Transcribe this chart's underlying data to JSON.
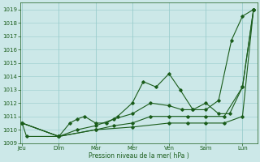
{
  "xlabel": "Pression niveau de la mer( hPa )",
  "background_color": "#cce8e8",
  "grid_color": "#99cccc",
  "line_color": "#1a5c1a",
  "ylim": [
    1009,
    1019.5
  ],
  "yticks": [
    1009,
    1010,
    1011,
    1012,
    1013,
    1014,
    1015,
    1016,
    1017,
    1018,
    1019
  ],
  "day_labels": [
    "Jeu",
    "Dim",
    "Mar",
    "Mer",
    "Ven",
    "Sam",
    "Lun"
  ],
  "day_positions": [
    0,
    1,
    2,
    3,
    4,
    5,
    6
  ],
  "xlim": [
    -0.05,
    6.4
  ],
  "line1_x": [
    0,
    0.12,
    1.0,
    1.3,
    1.5,
    1.7,
    2.0,
    2.3,
    2.6,
    3.0,
    3.3,
    3.65,
    4.0,
    4.3,
    4.65,
    5.0,
    5.35,
    5.7,
    6.0,
    6.3
  ],
  "line1_y": [
    1010.5,
    1009.5,
    1009.5,
    1010.5,
    1010.8,
    1011.0,
    1010.5,
    1010.5,
    1011.0,
    1012.0,
    1013.6,
    1013.2,
    1014.2,
    1013.0,
    1011.5,
    1011.5,
    1012.2,
    1016.7,
    1018.5,
    1019.0
  ],
  "line2_x": [
    0,
    1.0,
    1.5,
    2.0,
    2.5,
    3.0,
    3.5,
    4.0,
    4.35,
    4.65,
    5.0,
    5.35,
    5.65,
    6.0,
    6.3
  ],
  "line2_y": [
    1010.5,
    1009.5,
    1010.0,
    1010.3,
    1010.8,
    1011.2,
    1012.0,
    1011.8,
    1011.5,
    1011.5,
    1012.0,
    1011.2,
    1011.2,
    1013.2,
    1019.0
  ],
  "line3_x": [
    0,
    1.0,
    2.0,
    2.5,
    3.0,
    3.5,
    4.0,
    4.5,
    5.0,
    5.5,
    6.0,
    6.3
  ],
  "line3_y": [
    1010.5,
    1009.5,
    1010.0,
    1010.3,
    1010.5,
    1011.0,
    1011.0,
    1011.0,
    1011.0,
    1011.0,
    1013.2,
    1019.0
  ],
  "line4_x": [
    0,
    1.0,
    2.0,
    3.0,
    4.0,
    4.5,
    5.0,
    5.5,
    6.0,
    6.3
  ],
  "line4_y": [
    1010.5,
    1009.5,
    1010.0,
    1010.2,
    1010.5,
    1010.5,
    1010.5,
    1010.5,
    1011.0,
    1019.0
  ],
  "lw": 0.8,
  "ms": 1.8,
  "tick_fontsize": 5.0,
  "xlabel_fontsize": 5.5
}
